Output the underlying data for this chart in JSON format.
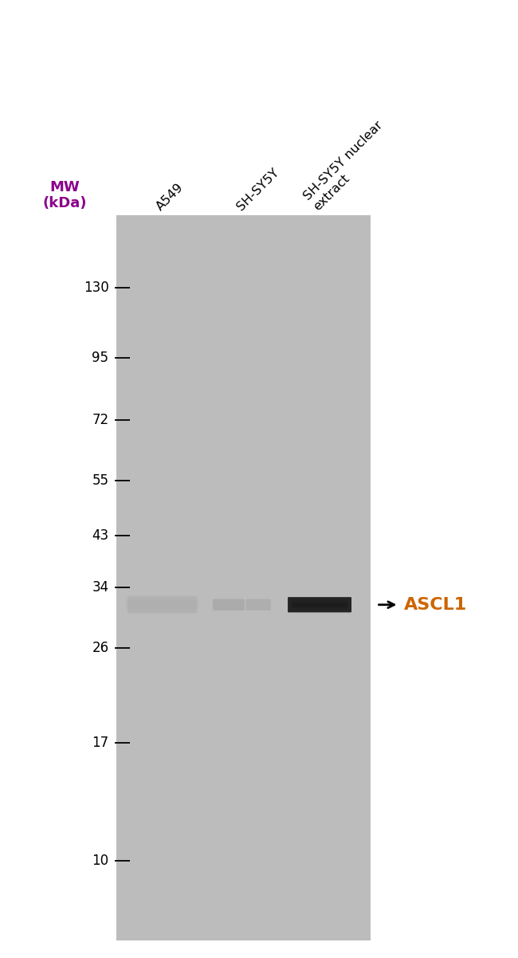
{
  "white_bg": "#ffffff",
  "gel_color": "#bcbcbc",
  "mw_label": "MW\n(kDa)",
  "mw_label_color": "#8b008b",
  "lane_labels": [
    "A549",
    "SH-SY5Y",
    "SH-SY5Y nuclear\nextract"
  ],
  "mw_markers": [
    {
      "kda": 130,
      "label": "130"
    },
    {
      "kda": 95,
      "label": "95"
    },
    {
      "kda": 72,
      "label": "72"
    },
    {
      "kda": 55,
      "label": "55"
    },
    {
      "kda": 43,
      "label": "43"
    },
    {
      "kda": 34,
      "label": "34"
    },
    {
      "kda": 26,
      "label": "26"
    },
    {
      "kda": 17,
      "label": "17"
    },
    {
      "kda": 10,
      "label": "10"
    }
  ],
  "band_kda": 31.5,
  "annotation_label": "ASCL1",
  "annotation_color": "#cc6600",
  "label_color": "#000000",
  "tick_color": "#000000",
  "log_min": 0.845,
  "log_max": 2.255
}
